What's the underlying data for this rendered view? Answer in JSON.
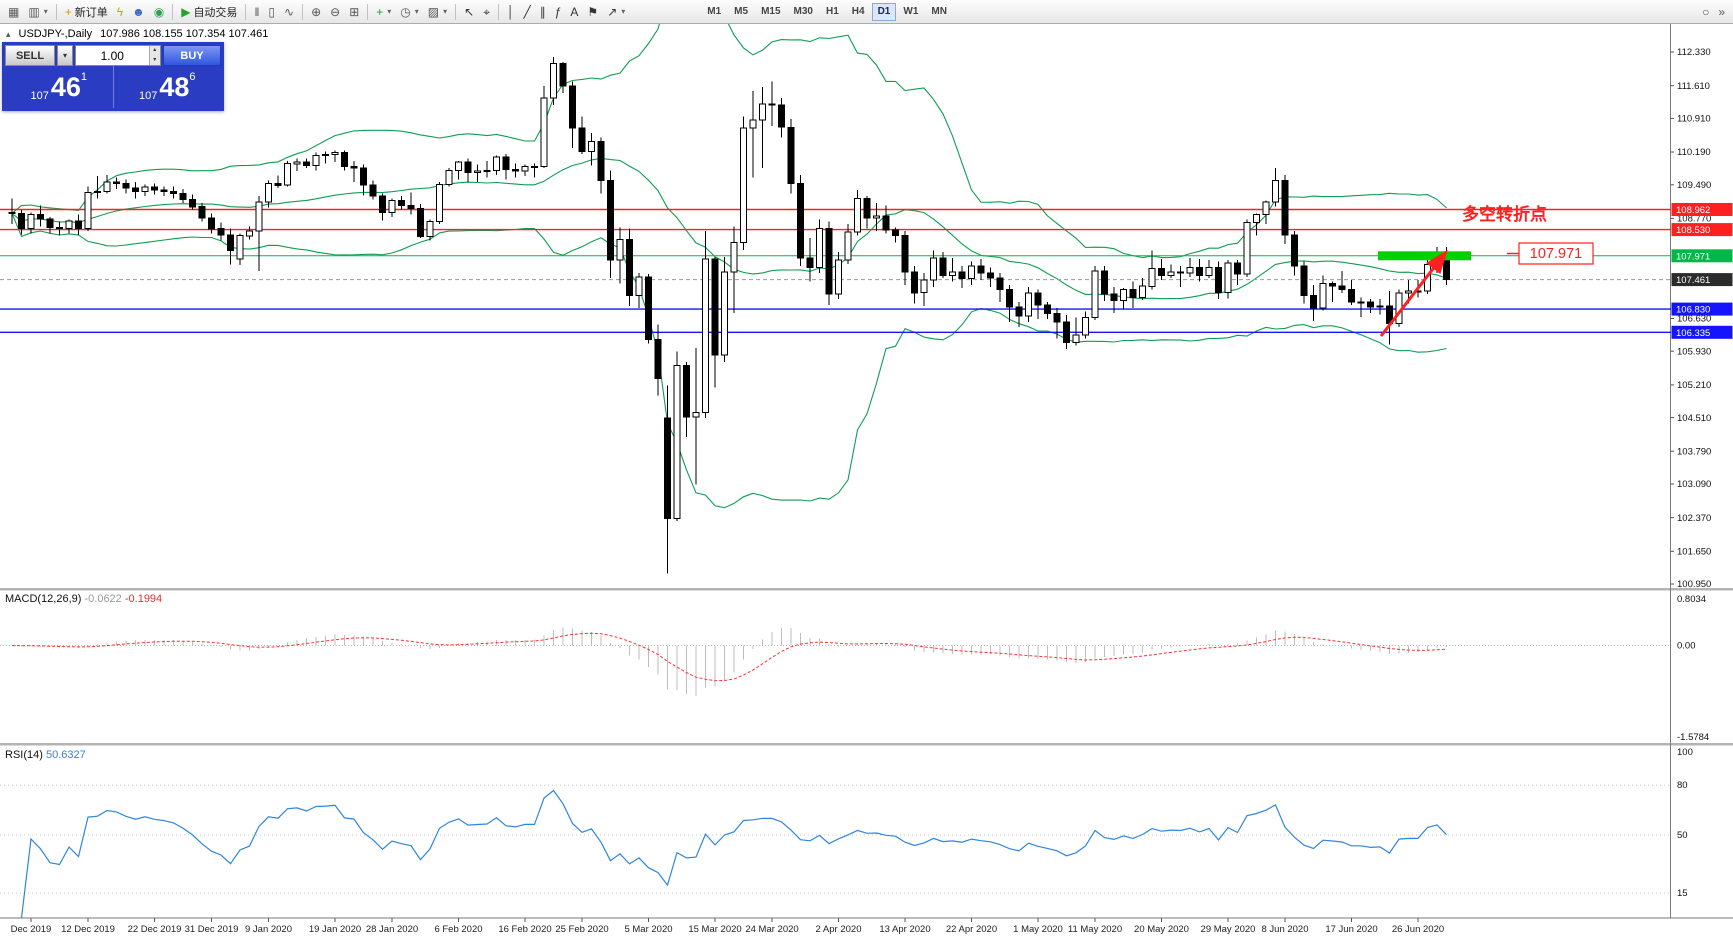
{
  "icons": {
    "caret_down": "▾",
    "spin_up": "▴",
    "spin_down": "▾",
    "toggle": "▴"
  },
  "toolbar": {
    "buttons": [
      {
        "name": "new-chart-button",
        "glyph": "▦",
        "color": "#5a5a5a"
      },
      {
        "name": "profiles-button",
        "glyph": "▥",
        "color": "#5a5a5a",
        "dd": true
      },
      {
        "sep": true
      },
      {
        "name": "new-order-button",
        "glyph": "+",
        "color": "#d49a00",
        "label": "新订单"
      },
      {
        "name": "terminal-button",
        "glyph": "ϟ",
        "color": "#e0a100"
      },
      {
        "name": "accounts-button",
        "glyph": "☻",
        "color": "#3a66c8"
      },
      {
        "name": "market-button",
        "glyph": "◉",
        "color": "#2e9e4f"
      },
      {
        "sep": true
      },
      {
        "name": "autotrading-button",
        "glyph": "▶",
        "color": "#28a428",
        "label": "自动交易"
      },
      {
        "sep": true
      },
      {
        "name": "bars-button",
        "glyph": "ǁ",
        "color": "#555555"
      },
      {
        "name": "candles-button",
        "glyph": "▯",
        "color": "#555555"
      },
      {
        "name": "line-chart-button",
        "glyph": "∿",
        "color": "#555555"
      },
      {
        "sep": true
      },
      {
        "name": "zoom-in-button",
        "glyph": "⊕",
        "color": "#555555"
      },
      {
        "name": "zoom-out-button",
        "glyph": "⊖",
        "color": "#555555"
      },
      {
        "name": "tile-windows-button",
        "glyph": "⊞",
        "color": "#555555"
      },
      {
        "sep": true
      },
      {
        "name": "indicators-button",
        "glyph": "+",
        "color": "#1f9e40",
        "dd": true
      },
      {
        "name": "periods-button",
        "glyph": "◷",
        "color": "#555555",
        "dd": true
      },
      {
        "name": "templates-button",
        "glyph": "▨",
        "color": "#555555",
        "dd": true
      },
      {
        "sep": true
      },
      {
        "name": "cursor-button",
        "glyph": "↖",
        "color": "#333333"
      },
      {
        "name": "crosshair-button",
        "glyph": "⌖",
        "color": "#333333"
      },
      {
        "sep": true
      },
      {
        "name": "vertical-line-button",
        "glyph": "│",
        "color": "#333333"
      },
      {
        "name": "trendline-button",
        "glyph": "╱",
        "color": "#333333"
      },
      {
        "name": "channel-button",
        "glyph": "∥",
        "color": "#333333"
      },
      {
        "name": "fibonacci-button",
        "glyph": "ƒ",
        "color": "#333333"
      },
      {
        "name": "text-button",
        "glyph": "A",
        "color": "#333333"
      },
      {
        "name": "label-button",
        "glyph": "⚑",
        "color": "#333333"
      },
      {
        "name": "shapes-button",
        "glyph": "↗",
        "color": "#333333",
        "dd": true
      }
    ],
    "timeframes": [
      "M1",
      "M5",
      "M15",
      "M30",
      "H1",
      "H4",
      "D1",
      "W1",
      "MN"
    ],
    "active_timeframe": "D1",
    "right_buttons": [
      {
        "name": "search-button",
        "glyph": "○",
        "color": "#555555"
      },
      {
        "name": "overflow-button",
        "glyph": "»",
        "color": "#555555"
      }
    ]
  },
  "chart": {
    "title": "USDJPY-,Daily",
    "ohlc_text": "107.986 108.155 107.354 107.461"
  },
  "one_click": {
    "sell_label": "SELL",
    "buy_label": "BUY",
    "volume": "1.00",
    "sell_price": {
      "prefix": "107",
      "big": "46",
      "sup": "1"
    },
    "buy_price": {
      "prefix": "107",
      "big": "48",
      "sup": "6"
    }
  },
  "annotations": {
    "pivot_text": "多空转折点",
    "level_label": "107.971"
  },
  "macd_panel": {
    "label": "MACD(12,26,9)",
    "value": "-0.0622",
    "signal": "-0.1994",
    "axis_labels": [
      "0.8034",
      "0.00",
      "-1.5784"
    ]
  },
  "rsi_panel": {
    "label": "RSI(14)",
    "value": "50.6327",
    "axis_labels": [
      "100",
      "80",
      "50",
      "15"
    ]
  },
  "price_axis": {
    "labels": [
      "112.330",
      "111.610",
      "110.910",
      "110.190",
      "109.490",
      "108.770",
      "106.630",
      "105.930",
      "105.210",
      "104.510",
      "103.790",
      "103.090",
      "102.370",
      "101.650",
      "100.950"
    ],
    "tags": [
      {
        "text": "108.962",
        "bg": "#ff2020"
      },
      {
        "text": "108.530",
        "bg": "#ff2020"
      },
      {
        "text": "107.971",
        "bg": "#00b84a"
      },
      {
        "text": "107.461",
        "bg": "#2b2b2b"
      },
      {
        "text": "106.830",
        "bg": "#1414ff"
      },
      {
        "text": "106.335",
        "bg": "#1414ff"
      }
    ]
  },
  "date_axis": [
    {
      "i": 2,
      "label": "Dec 2019"
    },
    {
      "i": 8,
      "label": "12 Dec 2019"
    },
    {
      "i": 15,
      "label": "22 Dec 2019"
    },
    {
      "i": 21,
      "label": "31 Dec 2019"
    },
    {
      "i": 27,
      "label": "9 Jan 2020"
    },
    {
      "i": 34,
      "label": "19 Jan 2020"
    },
    {
      "i": 40,
      "label": "28 Jan 2020"
    },
    {
      "i": 47,
      "label": "6 Feb 2020"
    },
    {
      "i": 54,
      "label": "16 Feb 2020"
    },
    {
      "i": 60,
      "label": "25 Feb 2020"
    },
    {
      "i": 67,
      "label": "5 Mar 2020"
    },
    {
      "i": 74,
      "label": "15 Mar 2020"
    },
    {
      "i": 80,
      "label": "24 Mar 2020"
    },
    {
      "i": 87,
      "label": "2 Apr 2020"
    },
    {
      "i": 94,
      "label": "13 Apr 2020"
    },
    {
      "i": 101,
      "label": "22 Apr 2020"
    },
    {
      "i": 108,
      "label": "1 May 2020"
    },
    {
      "i": 114,
      "label": "11 May 2020"
    },
    {
      "i": 121,
      "label": "20 May 2020"
    },
    {
      "i": 128,
      "label": "29 May 2020"
    },
    {
      "i": 134,
      "label": "8 Jun 2020"
    },
    {
      "i": 141,
      "label": "17 Jun 2020"
    },
    {
      "i": 148,
      "label": "26 Jun 2020"
    }
  ],
  "colors": {
    "red": "#ff2020",
    "green_line": "#00b84a",
    "zone_green": "#00d200",
    "blue": "#1414ff",
    "bollinger": "#109e52",
    "macd_signal": "#ff3030",
    "histogram": "#bdbdbd",
    "rsi_line": "#2e86e0",
    "bull": "#ffffff",
    "bear": "#000000",
    "outline": "#000000",
    "current_tag": "#2b2b2b",
    "panel_blue": "#2a3cc2"
  },
  "chart_data": {
    "type": "candlestick",
    "symbol": "USDJPY-",
    "period": "Daily",
    "last_ohlc": {
      "open": 107.986,
      "high": 108.155,
      "low": 107.354,
      "close": 107.461
    },
    "indicators": {
      "bollinger": {
        "period": 20,
        "deviation": 2
      },
      "macd": {
        "fast": 12,
        "slow": 26,
        "signal": 9,
        "value": -0.0622,
        "signal_value": -0.1994
      },
      "rsi": {
        "period": 14,
        "value": 50.6327
      }
    },
    "levels": [
      {
        "price": 108.962,
        "color": "#ff2020",
        "width": 1.4
      },
      {
        "price": 108.53,
        "color": "#ff2020",
        "width": 1.4
      },
      {
        "price": 107.971,
        "color": "#00b84a",
        "width": 1
      },
      {
        "price": 107.461,
        "color": "#9a9a9a",
        "width": 1,
        "dash": "4,3"
      },
      {
        "price": 106.83,
        "color": "#1414ff",
        "width": 1.4
      },
      {
        "price": 106.335,
        "color": "#1414ff",
        "width": 1.4
      }
    ],
    "candles": [
      [
        108.9,
        109.2,
        108.65,
        108.88
      ],
      [
        108.88,
        108.95,
        108.43,
        108.55
      ],
      [
        108.55,
        108.9,
        108.45,
        108.85
      ],
      [
        108.85,
        109.05,
        108.6,
        108.76
      ],
      [
        108.76,
        108.8,
        108.45,
        108.58
      ],
      [
        108.58,
        108.7,
        108.4,
        108.55
      ],
      [
        108.55,
        108.75,
        108.45,
        108.72
      ],
      [
        108.72,
        108.85,
        108.42,
        108.55
      ],
      [
        108.55,
        109.45,
        108.5,
        109.32
      ],
      [
        109.32,
        109.68,
        109.2,
        109.35
      ],
      [
        109.35,
        109.7,
        109.3,
        109.55
      ],
      [
        109.55,
        109.65,
        109.4,
        109.52
      ],
      [
        109.52,
        109.6,
        109.3,
        109.42
      ],
      [
        109.42,
        109.55,
        109.2,
        109.35
      ],
      [
        109.35,
        109.5,
        109.25,
        109.44
      ],
      [
        109.44,
        109.52,
        109.28,
        109.38
      ],
      [
        109.38,
        109.45,
        109.25,
        109.35
      ],
      [
        109.35,
        109.45,
        109.2,
        109.3
      ],
      [
        109.3,
        109.4,
        109.1,
        109.18
      ],
      [
        109.18,
        109.28,
        108.95,
        109.02
      ],
      [
        109.02,
        109.1,
        108.7,
        108.78
      ],
      [
        108.78,
        108.88,
        108.45,
        108.55
      ],
      [
        108.55,
        108.68,
        108.3,
        108.42
      ],
      [
        108.42,
        108.55,
        107.78,
        108.08
      ],
      [
        107.9,
        108.45,
        107.77,
        108.4
      ],
      [
        108.4,
        108.6,
        108.32,
        108.5
      ],
      [
        108.5,
        109.25,
        107.65,
        109.12
      ],
      [
        109.12,
        109.58,
        109.0,
        109.52
      ],
      [
        109.52,
        109.69,
        109.42,
        109.48
      ],
      [
        109.48,
        110.0,
        109.45,
        109.94
      ],
      [
        109.94,
        110.05,
        109.78,
        109.98
      ],
      [
        109.98,
        110.05,
        109.85,
        109.9
      ],
      [
        109.9,
        110.18,
        109.8,
        110.12
      ],
      [
        110.12,
        110.2,
        109.95,
        110.14
      ],
      [
        110.14,
        110.22,
        109.98,
        110.18
      ],
      [
        110.18,
        110.22,
        109.8,
        109.88
      ],
      [
        109.88,
        110.0,
        109.55,
        109.85
      ],
      [
        109.85,
        109.92,
        109.26,
        109.48
      ],
      [
        109.48,
        109.58,
        109.18,
        109.25
      ],
      [
        109.25,
        109.3,
        108.73,
        108.9
      ],
      [
        108.9,
        109.2,
        108.8,
        109.15
      ],
      [
        109.15,
        109.25,
        108.95,
        109.05
      ],
      [
        109.05,
        109.32,
        108.85,
        108.98
      ],
      [
        108.98,
        109.08,
        108.35,
        108.38
      ],
      [
        108.38,
        108.75,
        108.3,
        108.7
      ],
      [
        108.7,
        109.55,
        108.65,
        109.5
      ],
      [
        109.5,
        109.85,
        109.45,
        109.8
      ],
      [
        109.8,
        110.0,
        109.6,
        109.98
      ],
      [
        109.98,
        110.05,
        109.55,
        109.75
      ],
      [
        109.75,
        109.92,
        109.55,
        109.78
      ],
      [
        109.78,
        110.0,
        109.65,
        109.8
      ],
      [
        109.8,
        110.12,
        109.7,
        110.08
      ],
      [
        110.08,
        110.15,
        109.6,
        109.82
      ],
      [
        109.82,
        109.95,
        109.65,
        109.78
      ],
      [
        109.78,
        109.92,
        109.68,
        109.88
      ],
      [
        109.88,
        109.95,
        109.65,
        109.88
      ],
      [
        109.88,
        111.6,
        109.85,
        111.35
      ],
      [
        111.35,
        112.22,
        111.2,
        112.08
      ],
      [
        112.08,
        112.12,
        111.45,
        111.6
      ],
      [
        111.6,
        111.7,
        110.28,
        110.7
      ],
      [
        110.7,
        110.95,
        110.15,
        110.2
      ],
      [
        110.2,
        110.6,
        109.9,
        110.42
      ],
      [
        110.42,
        110.5,
        109.3,
        109.58
      ],
      [
        109.58,
        109.8,
        107.5,
        107.88
      ],
      [
        107.88,
        108.58,
        107.38,
        108.32
      ],
      [
        108.32,
        108.55,
        106.9,
        107.12
      ],
      [
        107.12,
        107.6,
        106.85,
        107.52
      ],
      [
        107.52,
        107.58,
        106.1,
        106.18
      ],
      [
        106.18,
        106.5,
        104.98,
        105.35
      ],
      [
        104.5,
        105.2,
        101.18,
        102.35
      ],
      [
        102.35,
        105.92,
        102.3,
        105.62
      ],
      [
        105.62,
        105.7,
        104.1,
        104.52
      ],
      [
        104.52,
        106.0,
        103.08,
        104.62
      ],
      [
        104.62,
        108.5,
        104.5,
        107.9
      ],
      [
        107.9,
        107.95,
        105.15,
        105.85
      ],
      [
        105.85,
        107.95,
        105.7,
        107.62
      ],
      [
        107.62,
        108.6,
        106.75,
        108.25
      ],
      [
        108.25,
        110.95,
        108.1,
        110.7
      ],
      [
        110.7,
        111.5,
        109.65,
        110.88
      ],
      [
        110.88,
        111.58,
        109.85,
        111.22
      ],
      [
        111.22,
        111.7,
        110.75,
        111.2
      ],
      [
        111.2,
        111.35,
        110.5,
        110.72
      ],
      [
        110.72,
        110.9,
        109.3,
        109.52
      ],
      [
        109.52,
        109.7,
        107.75,
        107.92
      ],
      [
        107.92,
        108.35,
        107.42,
        107.72
      ],
      [
        107.72,
        108.75,
        107.6,
        108.55
      ],
      [
        108.55,
        108.7,
        106.92,
        107.15
      ],
      [
        107.15,
        108.05,
        107.05,
        107.88
      ],
      [
        107.88,
        108.65,
        107.8,
        108.48
      ],
      [
        108.48,
        109.38,
        108.4,
        109.2
      ],
      [
        109.2,
        109.25,
        108.55,
        108.78
      ],
      [
        108.78,
        109.1,
        108.5,
        108.82
      ],
      [
        108.82,
        109.05,
        108.45,
        108.52
      ],
      [
        108.52,
        108.58,
        108.25,
        108.4
      ],
      [
        108.4,
        108.5,
        107.35,
        107.62
      ],
      [
        107.62,
        107.75,
        106.95,
        107.18
      ],
      [
        107.18,
        107.6,
        106.9,
        107.45
      ],
      [
        107.45,
        108.08,
        107.3,
        107.92
      ],
      [
        107.92,
        108.05,
        107.5,
        107.55
      ],
      [
        107.55,
        107.92,
        107.42,
        107.62
      ],
      [
        107.62,
        107.75,
        107.28,
        107.48
      ],
      [
        107.48,
        107.85,
        107.35,
        107.75
      ],
      [
        107.75,
        107.9,
        107.45,
        107.6
      ],
      [
        107.6,
        107.72,
        107.3,
        107.5
      ],
      [
        107.5,
        107.6,
        106.98,
        107.25
      ],
      [
        107.25,
        107.35,
        106.55,
        106.88
      ],
      [
        106.88,
        106.98,
        106.45,
        106.68
      ],
      [
        106.68,
        107.3,
        106.55,
        107.18
      ],
      [
        107.18,
        107.25,
        106.62,
        106.92
      ],
      [
        106.92,
        106.98,
        106.62,
        106.74
      ],
      [
        106.74,
        106.85,
        106.2,
        106.55
      ],
      [
        106.55,
        106.7,
        105.98,
        106.12
      ],
      [
        106.12,
        106.65,
        106.05,
        106.28
      ],
      [
        106.28,
        106.78,
        106.2,
        106.65
      ],
      [
        106.65,
        107.75,
        106.6,
        107.65
      ],
      [
        107.65,
        107.75,
        107.0,
        107.15
      ],
      [
        107.15,
        107.3,
        106.75,
        107.02
      ],
      [
        107.02,
        107.28,
        106.82,
        107.25
      ],
      [
        107.25,
        107.42,
        106.85,
        107.08
      ],
      [
        107.08,
        107.5,
        107.02,
        107.32
      ],
      [
        107.32,
        108.08,
        107.25,
        107.7
      ],
      [
        107.7,
        107.9,
        107.45,
        107.55
      ],
      [
        107.55,
        107.78,
        107.5,
        107.62
      ],
      [
        107.62,
        107.75,
        107.3,
        107.6
      ],
      [
        107.6,
        107.92,
        107.52,
        107.72
      ],
      [
        107.72,
        107.9,
        107.42,
        107.55
      ],
      [
        107.55,
        107.88,
        107.5,
        107.72
      ],
      [
        107.72,
        107.85,
        107.05,
        107.18
      ],
      [
        107.18,
        107.88,
        107.06,
        107.82
      ],
      [
        107.82,
        107.88,
        107.35,
        107.58
      ],
      [
        107.58,
        108.75,
        107.52,
        108.68
      ],
      [
        108.68,
        108.88,
        108.4,
        108.85
      ],
      [
        108.85,
        109.15,
        108.65,
        109.12
      ],
      [
        109.12,
        109.85,
        109.02,
        109.58
      ],
      [
        109.58,
        109.7,
        108.22,
        108.42
      ],
      [
        108.42,
        108.5,
        107.55,
        107.75
      ],
      [
        107.75,
        107.85,
        106.95,
        107.12
      ],
      [
        107.12,
        107.35,
        106.58,
        106.85
      ],
      [
        106.85,
        107.55,
        106.8,
        107.38
      ],
      [
        107.38,
        107.42,
        106.98,
        107.32
      ],
      [
        107.32,
        107.65,
        107.18,
        107.25
      ],
      [
        107.25,
        107.45,
        106.92,
        106.98
      ],
      [
        106.98,
        107.08,
        106.66,
        106.98
      ],
      [
        106.98,
        107.05,
        106.75,
        106.88
      ],
      [
        106.88,
        107.05,
        106.72,
        106.9
      ],
      [
        106.9,
        107.22,
        106.07,
        106.52
      ],
      [
        106.52,
        107.25,
        106.45,
        107.18
      ],
      [
        107.18,
        107.45,
        106.95,
        107.22
      ],
      [
        107.22,
        107.45,
        107.08,
        107.22
      ],
      [
        107.22,
        107.88,
        107.15,
        107.78
      ],
      [
        107.78,
        108.16,
        107.6,
        107.93
      ],
      [
        107.99,
        108.16,
        107.35,
        107.46
      ]
    ]
  }
}
